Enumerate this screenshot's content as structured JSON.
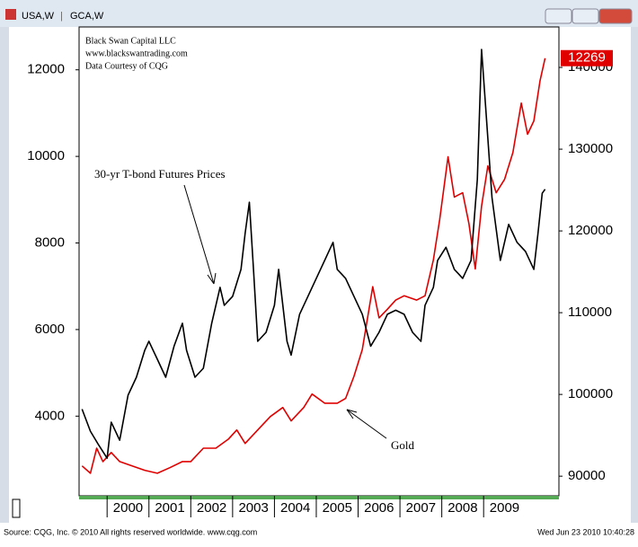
{
  "window": {
    "tabs": [
      "USA,W",
      "GCA,W"
    ]
  },
  "chart_data": {
    "type": "line",
    "notes": [
      "Black Swan Capital LLC",
      "www.blackswantrading.com",
      "Data Courtesy of CQG"
    ],
    "xlim": [
      1999.33,
      2010.8
    ],
    "xticks": [
      2000,
      2001,
      2002,
      2003,
      2004,
      2005,
      2006,
      2007,
      2008,
      2009
    ],
    "ylim": [
      2160,
      12990
    ],
    "yticks": [
      4000,
      6000,
      8000,
      10000,
      12000
    ],
    "y2lim": [
      87600,
      144950
    ],
    "y2ticks": [
      90000,
      100000,
      110000,
      120000,
      130000,
      140000
    ],
    "series": [
      {
        "name": "Gold",
        "color": "#e00000",
        "x": [
          1999.4,
          1999.6,
          1999.75,
          1999.9,
          2000.1,
          2000.3,
          2000.6,
          2000.9,
          2001.2,
          2001.5,
          2001.8,
          2002.0,
          2002.3,
          2002.6,
          2002.9,
          2003.1,
          2003.3,
          2003.6,
          2003.9,
          2004.2,
          2004.4,
          2004.7,
          2004.9,
          2005.2,
          2005.5,
          2005.7,
          2005.9,
          2006.1,
          2006.35,
          2006.5,
          2006.7,
          2006.9,
          2007.1,
          2007.4,
          2007.6,
          2007.8,
          2007.95,
          2008.15,
          2008.3,
          2008.5,
          2008.65,
          2008.8,
          2008.95,
          2009.1,
          2009.3,
          2009.5,
          2009.7,
          2009.9,
          2010.05,
          2010.2,
          2010.35,
          2010.47
        ],
        "values": [
          2850,
          2680,
          3260,
          2950,
          3160,
          2950,
          2850,
          2750,
          2680,
          2810,
          2950,
          2950,
          3260,
          3260,
          3470,
          3680,
          3370,
          3680,
          3990,
          4200,
          3890,
          4200,
          4510,
          4300,
          4300,
          4410,
          4920,
          5540,
          6990,
          6270,
          6470,
          6680,
          6780,
          6680,
          6780,
          7610,
          8540,
          9990,
          9060,
          9160,
          8440,
          7400,
          8850,
          9780,
          9160,
          9470,
          10090,
          11230,
          10510,
          10820,
          11750,
          12269
        ]
      },
      {
        "name": "30-yr T-bond Futures Prices",
        "color": "#000000",
        "axis": "y2",
        "x": [
          1999.4,
          1999.6,
          1999.8,
          2000.0,
          2000.1,
          2000.3,
          2000.5,
          2000.7,
          2000.9,
          2001.0,
          2001.2,
          2001.4,
          2001.6,
          2001.8,
          2001.9,
          2002.1,
          2002.3,
          2002.5,
          2002.7,
          2002.8,
          2003.0,
          2003.2,
          2003.3,
          2003.4,
          2003.5,
          2003.6,
          2003.8,
          2004.0,
          2004.1,
          2004.3,
          2004.4,
          2004.6,
          2004.8,
          2005.0,
          2005.2,
          2005.4,
          2005.5,
          2005.7,
          2005.9,
          2006.1,
          2006.3,
          2006.5,
          2006.7,
          2006.9,
          2007.1,
          2007.3,
          2007.5,
          2007.6,
          2007.8,
          2007.9,
          2008.1,
          2008.3,
          2008.5,
          2008.7,
          2008.85,
          2008.95,
          2009.05,
          2009.2,
          2009.4,
          2009.6,
          2009.8,
          2010.0,
          2010.2,
          2010.3,
          2010.4,
          2010.47
        ],
        "values": [
          98200,
          95500,
          93800,
          92200,
          96600,
          94400,
          99900,
          102100,
          105400,
          106500,
          104300,
          102100,
          105900,
          108700,
          105400,
          102100,
          103200,
          108700,
          113100,
          110900,
          112000,
          115300,
          119700,
          123500,
          115300,
          106500,
          107600,
          110900,
          115300,
          106500,
          104800,
          109800,
          112000,
          114200,
          116400,
          118600,
          115300,
          114200,
          112000,
          109800,
          105900,
          107600,
          109800,
          110300,
          109800,
          107600,
          106500,
          110900,
          113100,
          116400,
          118000,
          115300,
          114200,
          116400,
          126300,
          142200,
          135100,
          124100,
          116400,
          120800,
          118600,
          117500,
          115300,
          119700,
          124600,
          125100
        ]
      }
    ]
  },
  "footer": {
    "source": "Source: CQG, Inc. © 2010 All rights reserved worldwide. www.cqg.com",
    "timestamp": "Wed Jun 23 2010 10:40:28"
  }
}
